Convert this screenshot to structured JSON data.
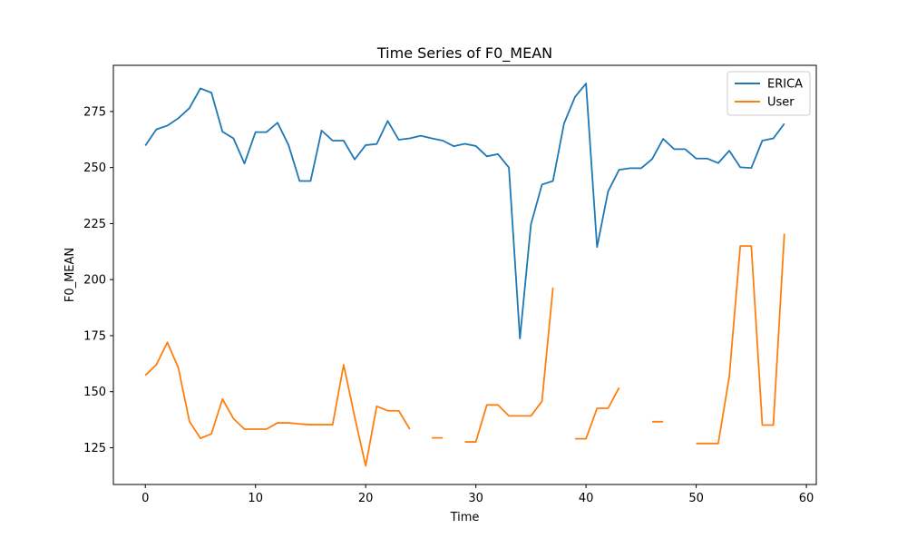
{
  "chart_data": {
    "type": "line",
    "title": "Time Series of F0_MEAN",
    "xlabel": "Time",
    "ylabel": "F0_MEAN",
    "xlim": [
      -2.9,
      60.9
    ],
    "ylim": [
      108.6,
      295.6
    ],
    "xticks": [
      0,
      10,
      20,
      30,
      40,
      50,
      60
    ],
    "yticks": [
      125,
      150,
      175,
      200,
      225,
      250,
      275
    ],
    "grid": false,
    "legend": "top-right",
    "series": [
      {
        "name": "ERICA",
        "color": "#1f77b4",
        "x": [
          0,
          1,
          2,
          3,
          4,
          5,
          6,
          7,
          8,
          9,
          10,
          11,
          12,
          13,
          14,
          15,
          16,
          17,
          18,
          19,
          20,
          21,
          22,
          23,
          24,
          25,
          26,
          27,
          28,
          29,
          30,
          31,
          32,
          33,
          34,
          35,
          36,
          37,
          38,
          39,
          40,
          41,
          42,
          43,
          44,
          45,
          46,
          47,
          48,
          49,
          50,
          51,
          52,
          53,
          54,
          55,
          56,
          57,
          58
        ],
        "y": [
          259.8,
          267.0,
          268.7,
          272.0,
          276.5,
          285.3,
          283.4,
          266.0,
          263.0,
          251.8,
          265.8,
          265.8,
          270.0,
          260.0,
          244.0,
          244.0,
          266.5,
          262.0,
          262.0,
          253.6,
          260.0,
          260.5,
          270.8,
          262.4,
          263.0,
          264.2,
          263.0,
          262.0,
          259.5,
          260.6,
          259.6,
          255.0,
          256.0,
          250.0,
          173.7,
          224.6,
          242.4,
          244.0,
          269.6,
          281.5,
          287.5,
          214.5,
          239.3,
          249.0,
          249.7,
          249.7,
          253.8,
          262.8,
          258.2,
          258.2,
          254.0,
          254.0,
          252.0,
          257.5,
          250.1,
          249.8,
          262.0,
          263.0,
          269.6
        ]
      },
      {
        "name": "User",
        "color": "#ff7f0e",
        "x": [
          0,
          1,
          2,
          3,
          4,
          5,
          6,
          7,
          8,
          9,
          10,
          11,
          12,
          13,
          14,
          15,
          16,
          17,
          18,
          19,
          20,
          21,
          22,
          23,
          24,
          25,
          26,
          27,
          28,
          29,
          30,
          31,
          32,
          33,
          34,
          35,
          36,
          37,
          38,
          39,
          40,
          41,
          42,
          43,
          44,
          45,
          46,
          47,
          48,
          49,
          50,
          51,
          52,
          53,
          54,
          55,
          56,
          57,
          58
        ],
        "y": [
          157.3,
          162.0,
          172.0,
          160.6,
          136.8,
          129.2,
          131.2,
          146.7,
          138.0,
          133.3,
          133.3,
          133.3,
          136.1,
          136.1,
          135.6,
          135.3,
          135.3,
          135.3,
          162.0,
          138.8,
          116.9,
          143.5,
          141.5,
          141.5,
          133.3,
          null,
          129.4,
          129.4,
          null,
          127.6,
          127.6,
          144.1,
          144.1,
          139.2,
          139.2,
          139.2,
          145.7,
          196.4,
          null,
          129.0,
          129.0,
          142.6,
          142.6,
          151.8,
          null,
          null,
          136.6,
          136.6,
          null,
          null,
          126.9,
          126.9,
          126.9,
          156.7,
          215.0,
          215.0,
          135.1,
          135.1,
          220.5
        ]
      }
    ]
  }
}
